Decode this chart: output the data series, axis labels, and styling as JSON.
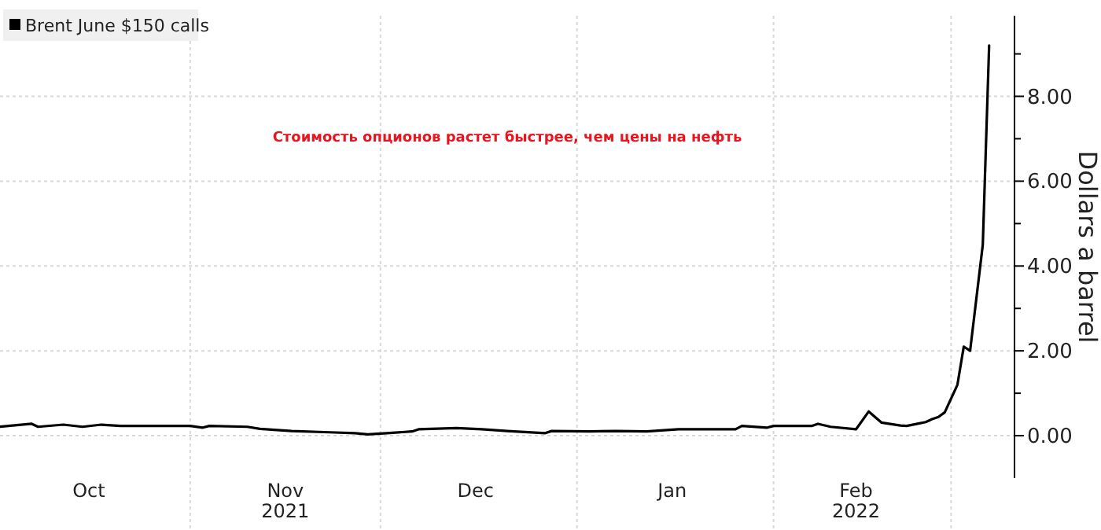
{
  "chart_data": {
    "type": "line",
    "ylabel": "Dollars a barrel",
    "annotations": [
      "Стоимость опционов растет быстрее, чем цены на нефть"
    ],
    "x": [
      "2021-10-02",
      "2021-10-07",
      "2021-10-08",
      "2021-10-12",
      "2021-10-15",
      "2021-10-18",
      "2021-10-21",
      "2021-11-01",
      "2021-11-03",
      "2021-11-04",
      "2021-11-10",
      "2021-11-12",
      "2021-11-17",
      "2021-11-23",
      "2021-11-27",
      "2021-11-29",
      "2021-12-02",
      "2021-12-06",
      "2021-12-07",
      "2021-12-13",
      "2021-12-17",
      "2021-12-21",
      "2021-12-27",
      "2021-12-28",
      "2022-01-03",
      "2022-01-07",
      "2022-01-12",
      "2022-01-17",
      "2022-01-26",
      "2022-01-27",
      "2022-01-31",
      "2022-02-01",
      "2022-02-07",
      "2022-02-08",
      "2022-02-10",
      "2022-02-14",
      "2022-02-16",
      "2022-02-18",
      "2022-02-21",
      "2022-02-22",
      "2022-02-24",
      "2022-02-25",
      "2022-02-26",
      "2022-02-27",
      "2022-02-28",
      "2022-03-02",
      "2022-03-03",
      "2022-03-04",
      "2022-03-06",
      "2022-03-07"
    ],
    "series": [
      {
        "name": "Brent June $150 calls",
        "color": "#000000",
        "values": [
          0.21,
          0.28,
          0.21,
          0.26,
          0.21,
          0.26,
          0.23,
          0.23,
          0.19,
          0.23,
          0.21,
          0.16,
          0.11,
          0.08,
          0.06,
          0.03,
          0.06,
          0.1,
          0.15,
          0.18,
          0.15,
          0.11,
          0.06,
          0.11,
          0.1,
          0.11,
          0.1,
          0.15,
          0.15,
          0.23,
          0.19,
          0.23,
          0.23,
          0.28,
          0.21,
          0.15,
          0.57,
          0.31,
          0.24,
          0.23,
          0.29,
          0.32,
          0.39,
          0.44,
          0.55,
          1.2,
          2.1,
          2.0,
          4.5,
          9.2
        ]
      }
    ],
    "xlim": [
      "2021-10-02",
      "2022-03-11"
    ],
    "xticks": [
      {
        "value": "2021-10-16",
        "label": "Oct"
      },
      {
        "value": "2021-11-16",
        "label": "Nov\n2021"
      },
      {
        "value": "2021-12-16",
        "label": "Dec"
      },
      {
        "value": "2022-01-16",
        "label": "Jan"
      },
      {
        "value": "2022-02-14",
        "label": "Feb\n2022"
      },
      {
        "value": "2021-11-01",
        "label": null
      },
      {
        "value": "2021-12-01",
        "label": null
      },
      {
        "value": "2022-01-01",
        "label": null
      },
      {
        "value": "2022-02-01",
        "label": null
      },
      {
        "value": "2022-03-01",
        "label": null
      }
    ],
    "ylim": [
      -1,
      9.9
    ],
    "yticks": [
      {
        "value": 0,
        "label": "0.00"
      },
      {
        "value": 2,
        "label": "2.00"
      },
      {
        "value": 4,
        "label": "4.00"
      },
      {
        "value": 6,
        "label": "6.00"
      },
      {
        "value": 8,
        "label": "8.00"
      },
      {
        "value": 1,
        "label": null
      },
      {
        "value": 3,
        "label": null
      },
      {
        "value": 5,
        "label": null
      },
      {
        "value": 7,
        "label": null
      },
      {
        "value": 9,
        "label": null
      }
    ],
    "grid": true,
    "legend": "top left",
    "line_style": "solid",
    "marker": "none"
  }
}
